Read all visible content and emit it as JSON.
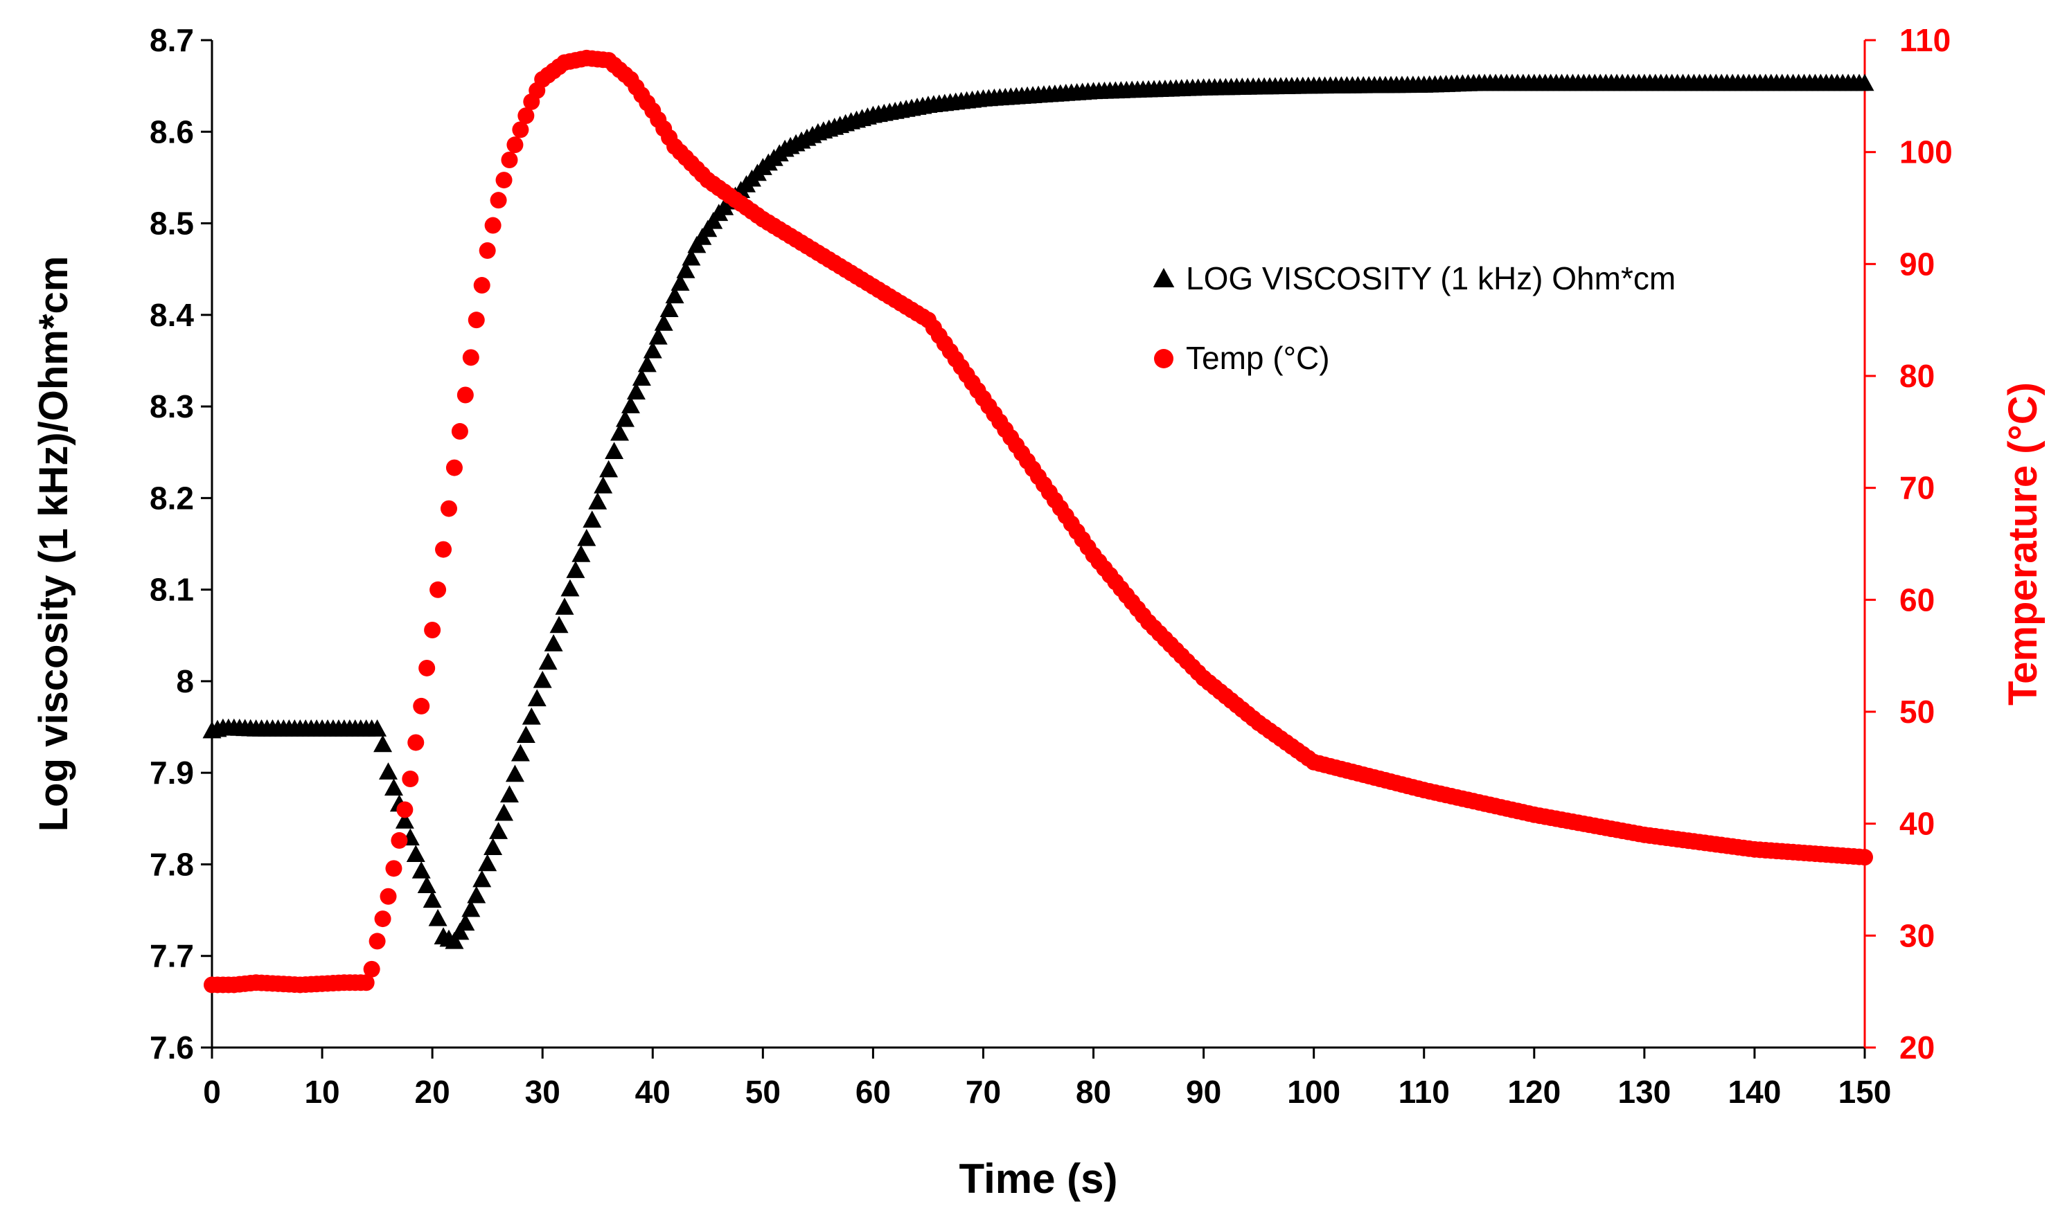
{
  "chart_data": {
    "type": "scatter",
    "title": "",
    "xlabel": "Time (s)",
    "ylabel": "Log viscosity (1 kHz)/Ohm*cm",
    "y2label": "Temperature (°C)",
    "xlim": [
      0,
      150
    ],
    "ylim": [
      7.6,
      8.7
    ],
    "y2lim": [
      20,
      110
    ],
    "x_ticks": [
      0,
      10,
      20,
      30,
      40,
      50,
      60,
      70,
      80,
      90,
      100,
      110,
      120,
      130,
      140,
      150
    ],
    "y_ticks": [
      "7.6",
      "7.7",
      "7.8",
      "7.9",
      "8",
      "8.1",
      "8.2",
      "8.3",
      "8.4",
      "8.5",
      "8.6",
      "8.7"
    ],
    "y2_ticks": [
      20,
      30,
      40,
      50,
      60,
      70,
      80,
      90,
      100,
      110
    ],
    "grid": false,
    "legend_position": "upper-right inside plot",
    "colors": {
      "viscosity": "#000000",
      "temperature": "#ff0000"
    },
    "series": [
      {
        "name": "LOG VISCOSITY (1 kHz) Ohm*cm",
        "axis": "left",
        "marker": "triangle",
        "x": [
          0,
          1,
          2,
          4,
          6,
          8,
          10,
          12,
          14,
          15,
          15.5,
          16,
          17,
          18,
          19,
          20,
          21,
          22,
          23,
          24,
          25,
          26,
          27,
          28,
          29,
          30,
          31,
          32,
          33,
          34,
          35,
          36,
          37,
          38,
          39,
          40,
          42,
          44,
          46,
          48,
          50,
          52,
          55,
          58,
          60,
          65,
          70,
          75,
          80,
          85,
          90,
          100,
          110,
          115,
          120,
          130,
          140,
          150
        ],
        "values": [
          7.945,
          7.948,
          7.948,
          7.947,
          7.947,
          7.947,
          7.947,
          7.947,
          7.947,
          7.947,
          7.93,
          7.9,
          7.865,
          7.828,
          7.792,
          7.76,
          7.72,
          7.715,
          7.735,
          7.765,
          7.8,
          7.835,
          7.875,
          7.92,
          7.96,
          8.0,
          8.04,
          8.08,
          8.12,
          8.155,
          8.195,
          8.23,
          8.27,
          8.3,
          8.33,
          8.36,
          8.42,
          8.475,
          8.51,
          8.535,
          8.56,
          8.58,
          8.598,
          8.61,
          8.617,
          8.628,
          8.635,
          8.639,
          8.643,
          8.645,
          8.647,
          8.649,
          8.65,
          8.652,
          8.652,
          8.652,
          8.652,
          8.652
        ]
      },
      {
        "name": "Temp (°C)",
        "axis": "right",
        "marker": "circle",
        "x": [
          0,
          2,
          4,
          6,
          8,
          10,
          12,
          14,
          14.5,
          15,
          16,
          17,
          18,
          19,
          20,
          21,
          22,
          23,
          24,
          25,
          26,
          27,
          28,
          29,
          30,
          32,
          34,
          36,
          38,
          40,
          42,
          45,
          50,
          55,
          60,
          65,
          70,
          75,
          80,
          85,
          90,
          95,
          100,
          110,
          120,
          130,
          140,
          150
        ],
        "values": [
          25.6,
          25.6,
          25.8,
          25.7,
          25.6,
          25.7,
          25.8,
          25.8,
          27.0,
          29.5,
          33.5,
          38.5,
          44.0,
          50.5,
          57.3,
          64.5,
          71.8,
          78.3,
          85.0,
          91.2,
          95.7,
          99.3,
          102.0,
          104.5,
          106.5,
          108.0,
          108.4,
          108.2,
          106.5,
          103.7,
          100.5,
          97.5,
          94.0,
          91.0,
          88.0,
          85.0,
          78.0,
          71.0,
          64.0,
          58.0,
          53.0,
          49.0,
          45.5,
          43.0,
          40.8,
          39.0,
          37.7,
          37.0
        ]
      }
    ]
  }
}
